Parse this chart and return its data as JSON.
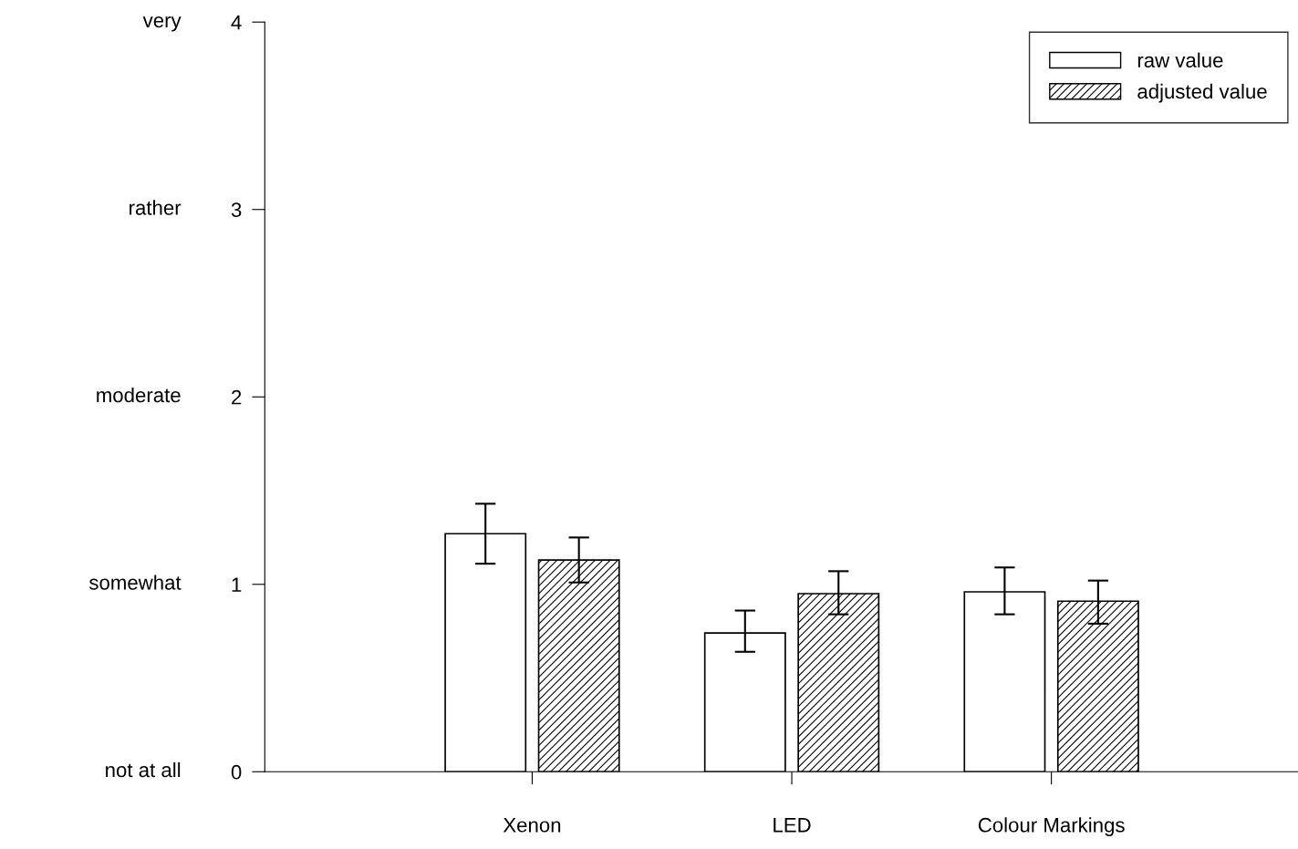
{
  "chart_data": {
    "type": "bar",
    "categories": [
      "Xenon",
      "LED",
      "Colour Markings"
    ],
    "series": [
      {
        "name": "raw value",
        "color": "#ffffff",
        "values": [
          1.27,
          0.74,
          0.96
        ],
        "errors": [
          [
            1.11,
            1.43
          ],
          [
            0.64,
            0.86
          ],
          [
            0.84,
            1.09
          ]
        ]
      },
      {
        "name": "adjusted value",
        "color": "#000000",
        "values": [
          1.13,
          0.95,
          0.91
        ],
        "errors": [
          [
            1.01,
            1.25
          ],
          [
            0.84,
            1.07
          ],
          [
            0.79,
            1.02
          ]
        ]
      }
    ],
    "ylim": [
      0,
      4
    ],
    "yticks": [
      0,
      1,
      2,
      3,
      4
    ],
    "annotations": [
      "not at all",
      "somewhat",
      "moderate",
      "rather",
      "very"
    ],
    "grid": false,
    "legend": "top right"
  }
}
